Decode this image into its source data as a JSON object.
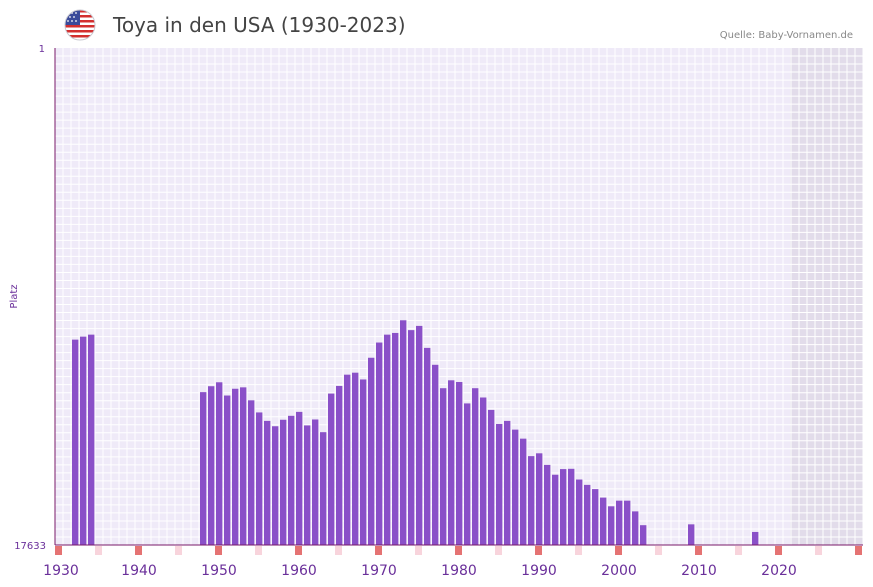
{
  "header": {
    "title": "Toya in den USA (1930-2023)",
    "source": "Quelle: Baby-Vornamen.de",
    "flag_icon": "us-flag-icon"
  },
  "chart_data": {
    "type": "bar",
    "title": "Toya in den USA (1930-2023)",
    "ylabel": "Platz",
    "xlabel": "",
    "y_axis_inverted": true,
    "ylim": [
      1,
      17633
    ],
    "y_ticks": [
      "1",
      "17633"
    ],
    "x_ticks": [
      1930,
      1940,
      1950,
      1960,
      1970,
      1980,
      1990,
      2000,
      2010,
      2020
    ],
    "years": [
      1930,
      1931,
      1932,
      1933,
      1934,
      1935,
      1936,
      1937,
      1938,
      1939,
      1940,
      1941,
      1942,
      1943,
      1944,
      1945,
      1946,
      1947,
      1948,
      1949,
      1950,
      1951,
      1952,
      1953,
      1954,
      1955,
      1956,
      1957,
      1958,
      1959,
      1960,
      1961,
      1962,
      1963,
      1964,
      1965,
      1966,
      1967,
      1968,
      1969,
      1970,
      1971,
      1972,
      1973,
      1974,
      1975,
      1976,
      1977,
      1978,
      1979,
      1980,
      1981,
      1982,
      1983,
      1984,
      1985,
      1986,
      1987,
      1988,
      1989,
      1990,
      1991,
      1992,
      1993,
      1994,
      1995,
      1996,
      1997,
      1998,
      1999,
      2000,
      2001,
      2002,
      2003,
      2004,
      2005,
      2006,
      2007,
      2008,
      2009,
      2010,
      2011,
      2012,
      2013,
      2014,
      2015,
      2016,
      2017,
      2018,
      2019,
      2020,
      2021,
      2022,
      2023
    ],
    "ranks": [
      null,
      null,
      10347,
      10240,
      10170,
      null,
      null,
      null,
      null,
      null,
      null,
      null,
      null,
      null,
      null,
      null,
      null,
      null,
      12210,
      12000,
      11860,
      12330,
      12090,
      12040,
      12500,
      12930,
      13230,
      13420,
      13190,
      13050,
      12910,
      13390,
      13180,
      13630,
      12260,
      11990,
      11590,
      11520,
      11760,
      10990,
      10450,
      10170,
      10110,
      9660,
      10010,
      9860,
      10640,
      11240,
      12070,
      11790,
      11850,
      12610,
      12070,
      12400,
      12840,
      13340,
      13230,
      13540,
      13860,
      14480,
      14380,
      14790,
      15140,
      14940,
      14930,
      15310,
      15500,
      15650,
      15950,
      16260,
      16060,
      16060,
      16440,
      16930,
      null,
      null,
      null,
      null,
      null,
      16900,
      null,
      null,
      null,
      null,
      null,
      null,
      null,
      17170,
      null,
      null,
      null,
      null,
      null,
      null
    ],
    "ylim_note": "rank 1 at top, rank 17633 at baseline",
    "colors": {
      "bar": "#8a50c8",
      "plot_bg": "#efeaf8",
      "grid": "#ffffff",
      "future_band": "#e2dcea",
      "axis": "#7a1a6a",
      "tick_text": "#6a2f9a",
      "decade_marker": "#e57373",
      "half_marker": "#f8d4dc"
    }
  }
}
